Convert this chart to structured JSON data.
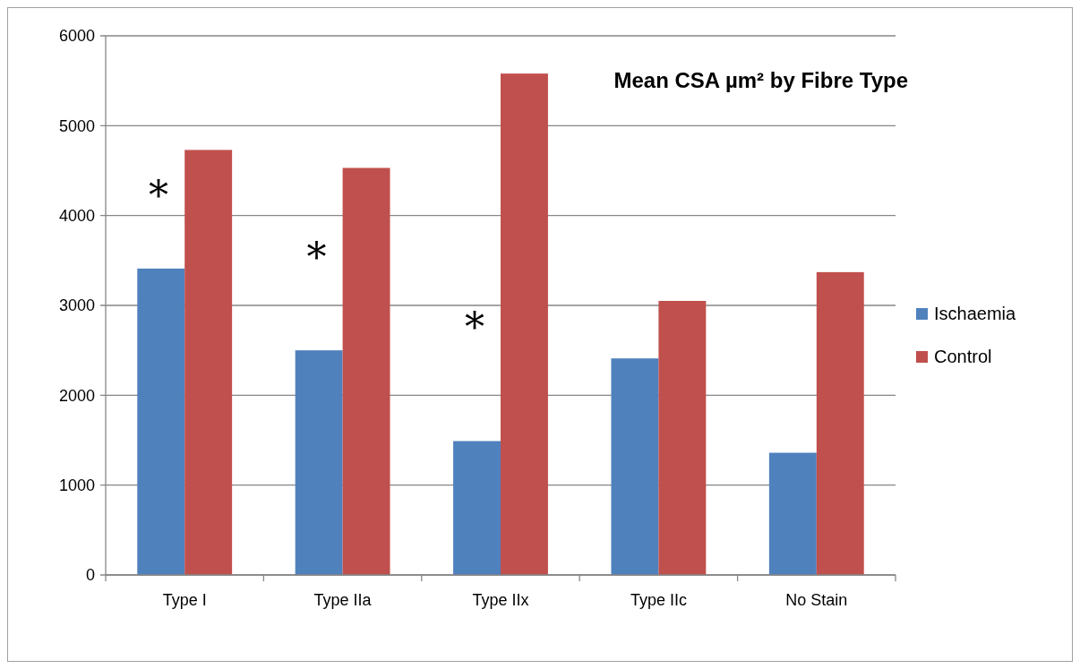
{
  "chart_data": {
    "type": "bar",
    "title": "Mean CSA µm² by Fibre Type",
    "categories": [
      "Type I",
      "Type IIa",
      "Type IIx",
      "Type IIc",
      "No Stain"
    ],
    "series": [
      {
        "name": "Ischaemia",
        "color": "#4f81bd",
        "values": [
          3410,
          2500,
          1490,
          2410,
          1360
        ]
      },
      {
        "name": "Control",
        "color": "#c0504d",
        "values": [
          4730,
          4530,
          5580,
          3050,
          3370
        ]
      }
    ],
    "ylim": [
      0,
      6000
    ],
    "yticks": [
      0,
      1000,
      2000,
      3000,
      4000,
      5000,
      6000
    ],
    "grid": "y",
    "legend": "right",
    "annotations": [
      {
        "text": "*",
        "x": "Type I",
        "y": 4290
      },
      {
        "text": "*",
        "x": "Type IIa",
        "y": 3600
      },
      {
        "text": "*",
        "x": "Type IIx",
        "y": 2820
      }
    ]
  }
}
